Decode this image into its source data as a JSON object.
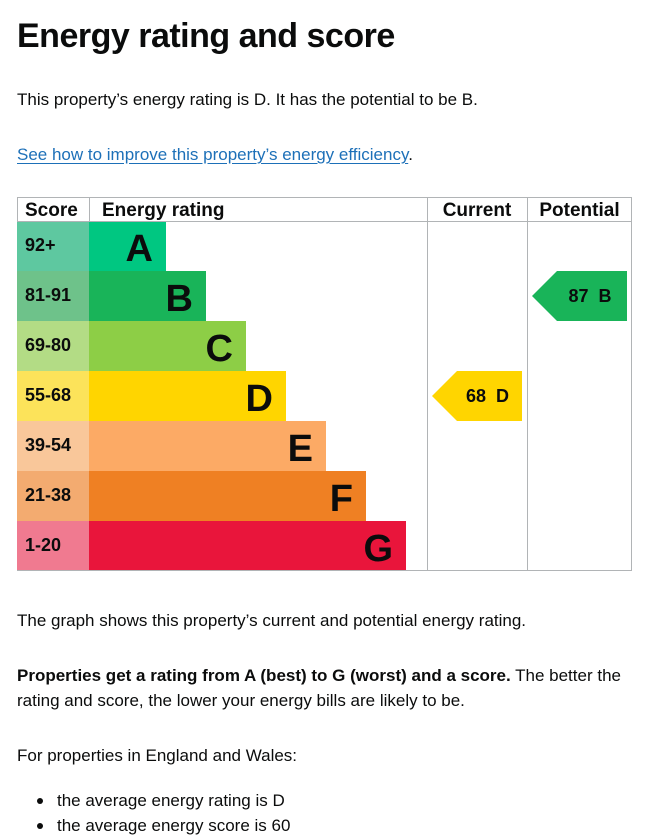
{
  "heading": "Energy rating and score",
  "intro": "This property’s energy rating is D. It has the potential to be B.",
  "improve_link": "See how to improve this property’s energy efficiency",
  "improve_link_suffix": ".",
  "colors": {
    "text": "#0b0c0c",
    "link": "#1d70b8",
    "grid": "#b1b4b6",
    "A": "#00c781",
    "B": "#19b459",
    "C": "#8dce46",
    "D": "#ffd500",
    "E": "#fcaa65",
    "F": "#ef8023",
    "G": "#e9153b"
  },
  "chart_data": {
    "type": "table",
    "headers": {
      "score": "Score",
      "rating": "Energy rating",
      "current": "Current",
      "potential": "Potential"
    },
    "bands": [
      {
        "range": "92+",
        "letter": "A",
        "color": "#00c781",
        "score_color": "#5ec8a0"
      },
      {
        "range": "81-91",
        "letter": "B",
        "color": "#19b459",
        "score_color": "#6ec28a"
      },
      {
        "range": "69-80",
        "letter": "C",
        "color": "#8dce46",
        "score_color": "#b3dc85"
      },
      {
        "range": "55-68",
        "letter": "D",
        "color": "#ffd500",
        "score_color": "#fce35a"
      },
      {
        "range": "39-54",
        "letter": "E",
        "color": "#fcaa65",
        "score_color": "#f9c79a"
      },
      {
        "range": "21-38",
        "letter": "F",
        "color": "#ef8023",
        "score_color": "#f3ab70"
      },
      {
        "range": "1-20",
        "letter": "G",
        "color": "#e9153b",
        "score_color": "#f07a90"
      }
    ],
    "current": {
      "score": 68,
      "letter": "D",
      "label": "68  D",
      "color": "#ffd500",
      "text_color": "#0b0c0c"
    },
    "potential": {
      "score": 87,
      "letter": "B",
      "label": "87  B",
      "color": "#19b459",
      "text_color": "#0b0c0c"
    }
  },
  "graph_text": "The graph shows this property’s current and potential energy rating.",
  "properties_bold": "Properties get a rating from A (best) to G (worst) and a score.",
  "properties_rest": " The better the rating and score, the lower your energy bills are likely to be.",
  "england_wales": "For properties in England and Wales:",
  "averages": [
    "the average energy rating is D",
    "the average energy score is 60"
  ]
}
